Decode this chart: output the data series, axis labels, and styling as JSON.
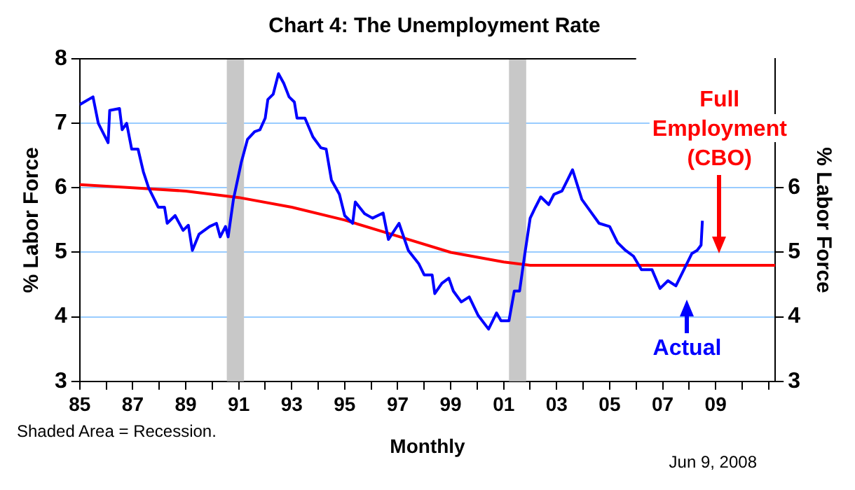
{
  "chart_data": {
    "type": "line",
    "title": "Chart 4: The Unemployment Rate",
    "xlabel": "Monthly",
    "ylabel": "% Labor Force",
    "y2label": "% Labor Force",
    "xlim": [
      1985,
      2011.25
    ],
    "xticks": [
      {
        "value": 1985,
        "label": "85"
      },
      {
        "value": 1986,
        "label": null
      },
      {
        "value": 1987,
        "label": "87"
      },
      {
        "value": 1988,
        "label": null
      },
      {
        "value": 1989,
        "label": "89"
      },
      {
        "value": 1990,
        "label": null
      },
      {
        "value": 1991,
        "label": "91"
      },
      {
        "value": 1992,
        "label": null
      },
      {
        "value": 1993,
        "label": "93"
      },
      {
        "value": 1994,
        "label": null
      },
      {
        "value": 1995,
        "label": "95"
      },
      {
        "value": 1996,
        "label": null
      },
      {
        "value": 1997,
        "label": "97"
      },
      {
        "value": 1998,
        "label": null
      },
      {
        "value": 1999,
        "label": "99"
      },
      {
        "value": 2000,
        "label": null
      },
      {
        "value": 2001,
        "label": "01"
      },
      {
        "value": 2002,
        "label": null
      },
      {
        "value": 2003,
        "label": "03"
      },
      {
        "value": 2004,
        "label": null
      },
      {
        "value": 2005,
        "label": "05"
      },
      {
        "value": 2006,
        "label": null
      },
      {
        "value": 2007,
        "label": "07"
      },
      {
        "value": 2008,
        "label": null
      },
      {
        "value": 2009,
        "label": "09"
      },
      {
        "value": 2010,
        "label": null
      },
      {
        "value": 2011,
        "label": null
      }
    ],
    "ylim": [
      3,
      8
    ],
    "yticks": [
      3,
      4,
      5,
      6,
      7,
      8
    ],
    "y2lim": [
      3,
      8
    ],
    "y2ticks": [
      3,
      4,
      5,
      6
    ],
    "grid": "y",
    "marker": "none",
    "line_style": "solid",
    "series": [
      {
        "name": "Actual",
        "color": "#0000ff",
        "x": [
          1985.0,
          1985.5,
          1985.7,
          1986.07,
          1986.13,
          1986.5,
          1986.6,
          1986.77,
          1986.96,
          1987.2,
          1987.4,
          1987.6,
          1987.96,
          1988.2,
          1988.3,
          1988.6,
          1988.9,
          1989.1,
          1989.25,
          1989.5,
          1989.9,
          1990.16,
          1990.3,
          1990.5,
          1990.6,
          1990.8,
          1991.1,
          1991.33,
          1991.6,
          1991.8,
          1992.0,
          1992.1,
          1992.3,
          1992.5,
          1992.7,
          1992.9,
          1993.1,
          1993.2,
          1993.5,
          1993.8,
          1994.1,
          1994.3,
          1994.5,
          1994.8,
          1995.0,
          1995.3,
          1995.4,
          1995.75,
          1996.05,
          1996.45,
          1996.65,
          1997.05,
          1997.4,
          1997.8,
          1998.0,
          1998.3,
          1998.4,
          1998.67,
          1998.93,
          1999.1,
          1999.4,
          1999.7,
          2000.04,
          2000.43,
          2000.73,
          2000.9,
          2001.2,
          2001.4,
          2001.6,
          2001.8,
          2002.0,
          2002.2,
          2002.4,
          2002.7,
          2002.9,
          2003.2,
          2003.6,
          2003.95,
          2004.25,
          2004.6,
          2005.0,
          2005.3,
          2005.6,
          2005.9,
          2006.2,
          2006.6,
          2006.9,
          2007.2,
          2007.5,
          2007.8,
          2008.1,
          2008.3,
          2008.45,
          2008.5
        ],
        "values": [
          7.29,
          7.41,
          7.0,
          6.7,
          7.2,
          7.23,
          6.9,
          7.0,
          6.6,
          6.6,
          6.25,
          6.0,
          5.7,
          5.7,
          5.45,
          5.57,
          5.34,
          5.42,
          5.03,
          5.28,
          5.4,
          5.45,
          5.24,
          5.4,
          5.24,
          5.82,
          6.4,
          6.75,
          6.87,
          6.9,
          7.08,
          7.37,
          7.45,
          7.77,
          7.62,
          7.41,
          7.33,
          7.08,
          7.08,
          6.79,
          6.62,
          6.6,
          6.12,
          5.9,
          5.57,
          5.45,
          5.78,
          5.6,
          5.53,
          5.61,
          5.2,
          5.45,
          5.03,
          4.82,
          4.65,
          4.65,
          4.36,
          4.52,
          4.6,
          4.4,
          4.23,
          4.31,
          4.02,
          3.81,
          4.06,
          3.94,
          3.94,
          4.4,
          4.4,
          4.98,
          5.53,
          5.7,
          5.86,
          5.74,
          5.9,
          5.95,
          6.28,
          5.82,
          5.65,
          5.45,
          5.4,
          5.15,
          5.03,
          4.94,
          4.73,
          4.73,
          4.44,
          4.56,
          4.48,
          4.73,
          4.98,
          5.03,
          5.11,
          5.49
        ]
      },
      {
        "name": "Full Employment (CBO)",
        "color": "#ff0000",
        "x": [
          1985,
          1987,
          1989,
          1991,
          1993,
          1995,
          1997,
          1999,
          2001,
          2002,
          2011.25
        ],
        "values": [
          6.05,
          6.0,
          5.95,
          5.85,
          5.7,
          5.5,
          5.25,
          5.0,
          4.85,
          4.8,
          4.8
        ]
      }
    ],
    "bands": [
      {
        "axis": "x",
        "from": 1990.55,
        "to": 1991.2,
        "color": "#c8c8c8"
      },
      {
        "axis": "x",
        "from": 2001.2,
        "to": 2001.85,
        "color": "#c8c8c8"
      }
    ],
    "annotations": [
      "Shaded Area = Recession.",
      "Jun 9, 2008"
    ]
  }
}
